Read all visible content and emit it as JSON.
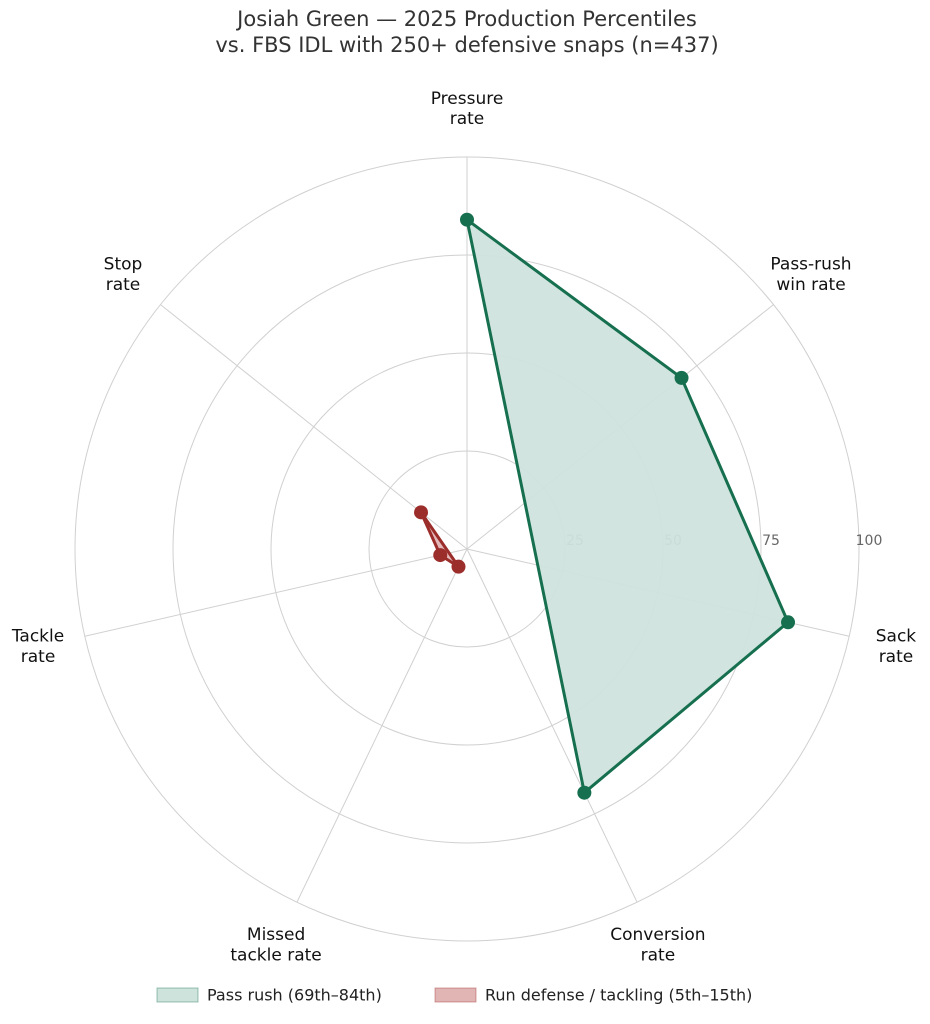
{
  "chart_data": {
    "type": "radar",
    "title": "Josiah Green — 2025 Production Percentiles",
    "subtitle": "vs. FBS IDL with 250+ defensive snaps (n=437)",
    "categories": [
      "Pressure\nrate",
      "Pass-rush\nwin rate",
      "Sack\nrate",
      "Conversion\nrate",
      "Missed\ntackle rate",
      "Tackle\nrate",
      "Stop\nrate"
    ],
    "rlim": [
      0,
      100
    ],
    "rticks": [
      25,
      50,
      75,
      100
    ],
    "grid": true,
    "series": [
      {
        "name": "Pass rush (69th–84th)",
        "color": "#16704f",
        "fill": "#cfe3dd",
        "values": [
          84,
          70,
          84,
          69,
          null,
          null,
          null
        ]
      },
      {
        "name": "Run defense / tackling (5th–15th)",
        "color": "#9b2d2a",
        "fill": "#e2b5b5",
        "values": [
          null,
          null,
          null,
          null,
          5,
          7,
          15
        ]
      }
    ]
  }
}
